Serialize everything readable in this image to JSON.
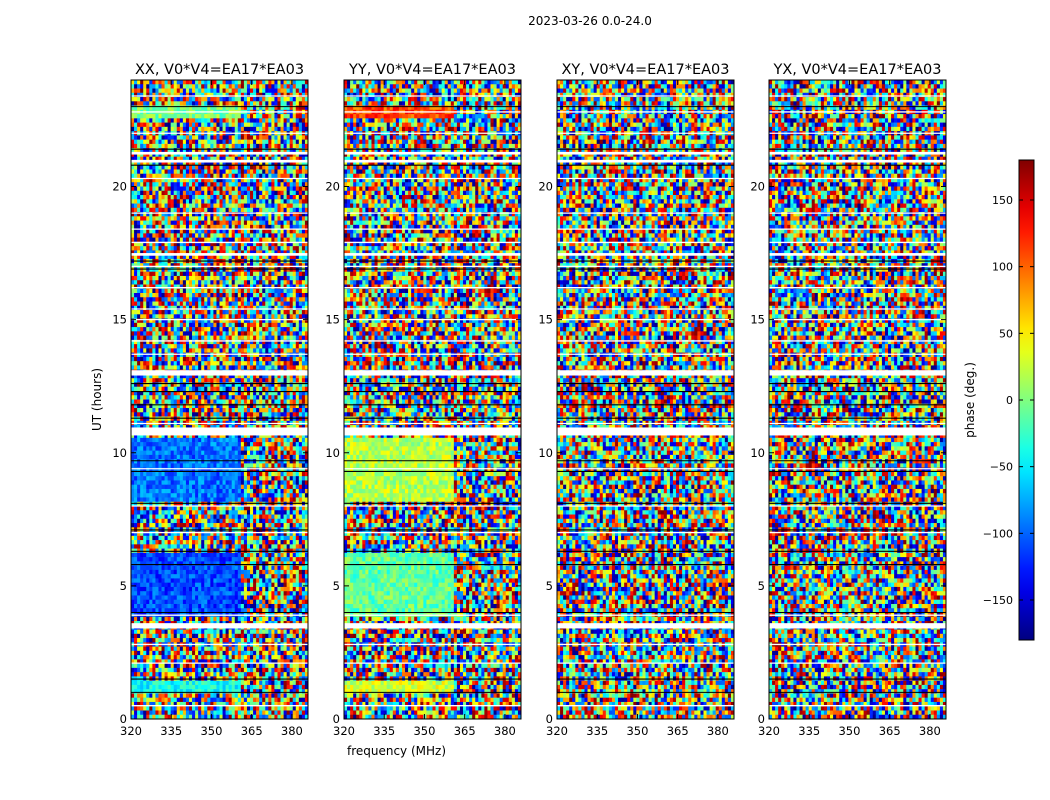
{
  "figure": {
    "suptitle": "2023-03-26 0.0-24.0"
  },
  "chart_data": [
    {
      "type": "heatmap",
      "title": "XX, V0*V4=EA17*EA03",
      "xlabel": "",
      "ylabel": "UT (hours)",
      "xlim": [
        320,
        386
      ],
      "ylim": [
        0,
        24
      ],
      "x_ticks": [
        320,
        335,
        350,
        365,
        380
      ],
      "y_ticks": [
        0,
        5,
        10,
        15,
        20
      ],
      "value": "phase (deg.)",
      "coherent_regions": [
        {
          "x": [
            320,
            361
          ],
          "y": [
            3.8,
            6.2
          ],
          "phase": -110
        },
        {
          "x": [
            320,
            361
          ],
          "y": [
            8.2,
            10.6
          ],
          "phase": -95
        },
        {
          "x": [
            320,
            361
          ],
          "y": [
            1.0,
            1.4
          ],
          "phase": -40
        },
        {
          "x": [
            320,
            361
          ],
          "y": [
            22.6,
            23.0
          ],
          "phase": 0
        }
      ]
    },
    {
      "type": "heatmap",
      "title": "YY, V0*V4=EA17*EA03",
      "xlabel": "frequency (MHz)",
      "ylabel": "",
      "xlim": [
        320,
        386
      ],
      "ylim": [
        0,
        24
      ],
      "x_ticks": [
        320,
        335,
        350,
        365,
        380
      ],
      "y_ticks": [
        0,
        5,
        10,
        15,
        20
      ],
      "value": "phase (deg.)",
      "coherent_regions": [
        {
          "x": [
            320,
            361
          ],
          "y": [
            3.8,
            6.2
          ],
          "phase": -10
        },
        {
          "x": [
            320,
            361
          ],
          "y": [
            8.2,
            10.6
          ],
          "phase": 20
        },
        {
          "x": [
            320,
            361
          ],
          "y": [
            1.0,
            1.4
          ],
          "phase": 30
        },
        {
          "x": [
            320,
            361
          ],
          "y": [
            22.6,
            23.0
          ],
          "phase": 110
        }
      ]
    },
    {
      "type": "heatmap",
      "title": "XY, V0*V4=EA17*EA03",
      "xlabel": "",
      "ylabel": "",
      "xlim": [
        320,
        386
      ],
      "ylim": [
        0,
        24
      ],
      "x_ticks": [
        320,
        335,
        350,
        365,
        380
      ],
      "y_ticks": [
        0,
        5,
        10,
        15,
        20
      ],
      "value": "phase (deg.)",
      "coherent_regions": []
    },
    {
      "type": "heatmap",
      "title": "YX, V0*V4=EA17*EA03",
      "xlabel": "",
      "ylabel": "",
      "xlim": [
        320,
        386
      ],
      "ylim": [
        0,
        24
      ],
      "x_ticks": [
        320,
        335,
        350,
        365,
        380
      ],
      "y_ticks": [
        0,
        5,
        10,
        15,
        20
      ],
      "value": "phase (deg.)",
      "coherent_regions": []
    }
  ],
  "colorbar": {
    "label": "phase (deg.)",
    "range": [
      -180,
      180
    ],
    "ticks": [
      150,
      100,
      50,
      0,
      -50,
      -100,
      -150
    ],
    "tick_labels": [
      "150",
      "100",
      "50",
      "0",
      "−50",
      "−100",
      "−150"
    ],
    "colormap": "jet"
  }
}
